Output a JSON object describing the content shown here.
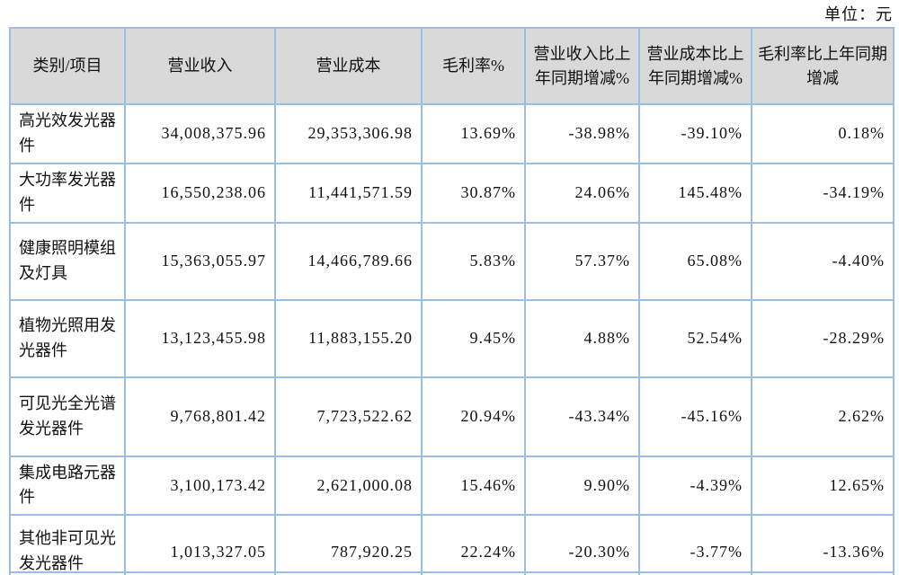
{
  "page": {
    "unit_label": "单位：元"
  },
  "table": {
    "headers": [
      "类别/项目",
      "营业收入",
      "营业成本",
      "毛利率%",
      "营业收入比上年同期增减%",
      "营业成本比上年同期增减%",
      "毛利率比上年同期增减"
    ],
    "rows": [
      [
        "高光效发光器件",
        "34,008,375.96",
        "29,353,306.98",
        "13.69%",
        "-38.98%",
        "-39.10%",
        "0.18%"
      ],
      [
        "大功率发光器件",
        "16,550,238.06",
        "11,441,571.59",
        "30.87%",
        "24.06%",
        "145.48%",
        "-34.19%"
      ],
      [
        "健康照明模组及灯具",
        "15,363,055.97",
        "14,466,789.66",
        "5.83%",
        "57.37%",
        "65.08%",
        "-4.40%"
      ],
      [
        "植物光照用发光器件",
        "13,123,455.98",
        "11,883,155.20",
        "9.45%",
        "4.88%",
        "52.54%",
        "-28.29%"
      ],
      [
        "可见光全光谱发光器件",
        "9,768,801.42",
        "7,723,522.62",
        "20.94%",
        "-43.34%",
        "-45.16%",
        "2.62%"
      ],
      [
        "集成电路元器件",
        "3,100,173.42",
        "2,621,000.08",
        "15.46%",
        "9.90%",
        "-4.39%",
        "12.65%"
      ],
      [
        "其他非可见光发光器件",
        "1,013,327.05",
        "787,920.25",
        "22.24%",
        "-20.30%",
        "-3.77%",
        "-13.36%"
      ]
    ]
  },
  "colors": {
    "border": "#9cbde4",
    "header_bg": "#d9d9d9",
    "text": "#111111"
  }
}
